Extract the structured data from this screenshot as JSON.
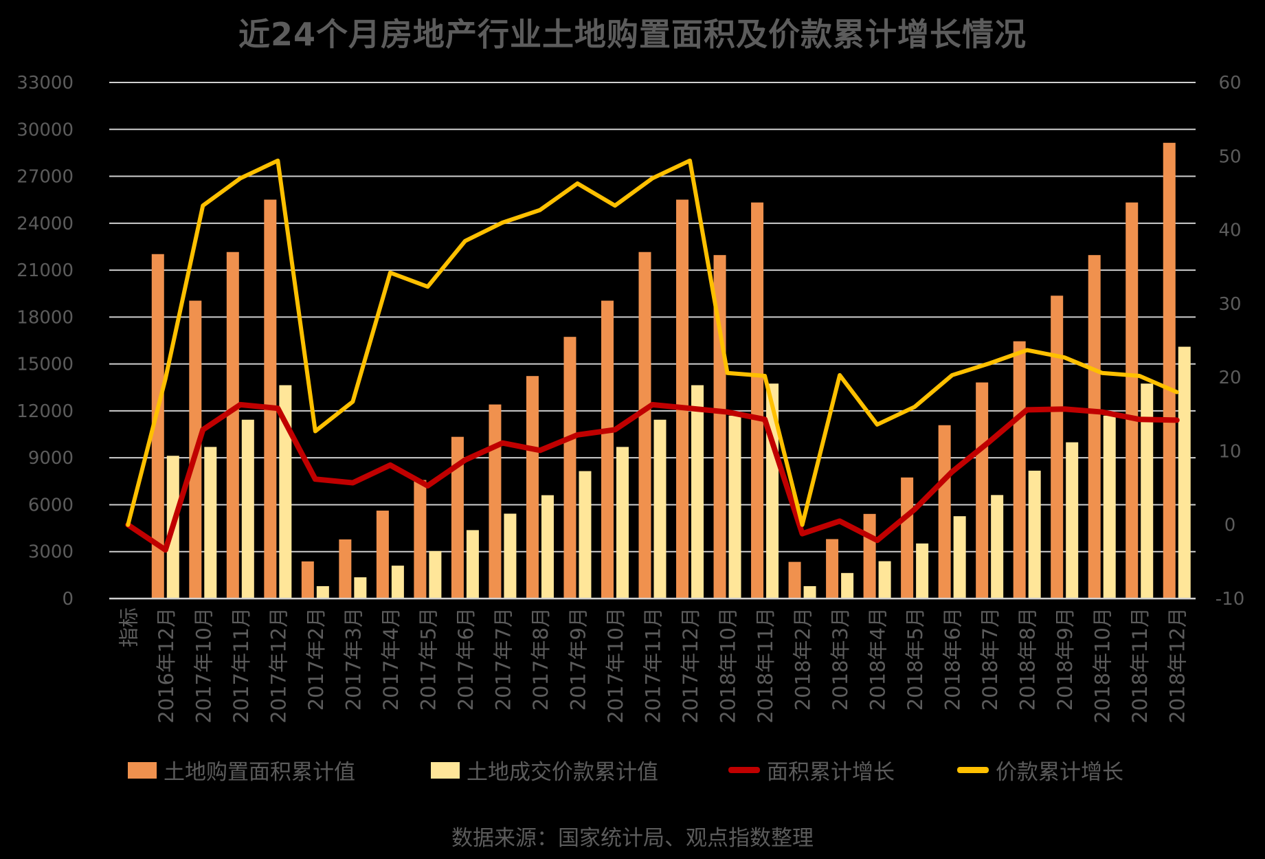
{
  "title": "近24个月房地产行业土地购置面积及价款累计增长情况",
  "source_note": "数据来源：国家统计局、观点指数整理",
  "colors": {
    "background": "#000000",
    "text_gray": "#5c5c5c",
    "gridline": "#d0d0d0",
    "area_bar": "#F0914E",
    "price_bar": "#FFE699",
    "area_growth_line": "#C00000",
    "price_growth_line": "#FFC000"
  },
  "legend": [
    {
      "label": "土地购置面积累计值",
      "type": "bar",
      "color": "#F0914E"
    },
    {
      "label": "土地成交价款累计值",
      "type": "bar",
      "color": "#FFE699"
    },
    {
      "label": "面积累计增长",
      "type": "line",
      "color": "#C00000"
    },
    {
      "label": "价款累计增长",
      "type": "line",
      "color": "#FFC000"
    }
  ],
  "chart_data": {
    "type": "combo-bar-line",
    "title": "近24个月房地产行业土地购置面积及价款累计增长情况",
    "grid": true,
    "legend_position": "bottom",
    "categories": [
      "指标",
      "2016年12月",
      "2017年10月",
      "2017年11月",
      "2017年12月",
      "2017年2月",
      "2017年3月",
      "2017年4月",
      "2017年5月",
      "2017年6月",
      "2017年7月",
      "2017年8月",
      "2017年9月",
      "2017年10月",
      "2017年11月",
      "2017年12月",
      "2018年10月",
      "2018年11月",
      "2018年2月",
      "2018年3月",
      "2018年4月",
      "2018年5月",
      "2018年6月",
      "2018年7月",
      "2018年8月",
      "2018年9月",
      "2018年10月",
      "2018年11月",
      "2018年12月"
    ],
    "left_axis": {
      "min": 0,
      "max": 33000,
      "step": 3000,
      "ticks": [
        0,
        3000,
        6000,
        9000,
        12000,
        15000,
        18000,
        21000,
        24000,
        27000,
        30000,
        33000
      ]
    },
    "right_axis": {
      "min": -10,
      "max": 60,
      "step": 10,
      "ticks": [
        -10,
        0,
        10,
        20,
        30,
        40,
        50,
        60
      ]
    },
    "series": [
      {
        "name": "土地购置面积累计值",
        "type": "bar",
        "axis": "left",
        "color": "#F0914E",
        "values": [
          0,
          22025,
          19048,
          22158,
          25508,
          2374,
          3782,
          5623,
          7580,
          10341,
          12410,
          14229,
          16733,
          19048,
          22158,
          25508,
          21963,
          25326,
          2345,
          3802,
          5412,
          7742,
          11085,
          13818,
          16451,
          19366,
          21963,
          25326,
          29142
        ]
      },
      {
        "name": "土地成交价款累计值",
        "type": "bar",
        "axis": "left",
        "color": "#FFE699",
        "values": [
          0,
          9129,
          9695,
          11436,
          13643,
          794,
          1359,
          2104,
          3036,
          4376,
          5428,
          6609,
          8149,
          9695,
          11436,
          13643,
          11695,
          13746,
          794,
          1634,
          2389,
          3522,
          5265,
          6619,
          8177,
          9992,
          11695,
          13746,
          16102
        ]
      },
      {
        "name": "面积累计增长",
        "type": "line",
        "axis": "right",
        "color": "#C00000",
        "values": [
          0,
          -3.4,
          12.9,
          16.3,
          15.8,
          6.2,
          5.7,
          8.1,
          5.3,
          8.8,
          11.1,
          10.1,
          12.2,
          12.9,
          16.3,
          15.8,
          15.3,
          14.3,
          -1.2,
          0.5,
          -2.1,
          2.1,
          7.2,
          11.3,
          15.6,
          15.7,
          15.3,
          14.3,
          14.2
        ]
      },
      {
        "name": "价款累计增长",
        "type": "line",
        "axis": "right",
        "color": "#FFC000",
        "values": [
          0,
          19.8,
          43.3,
          47.0,
          49.4,
          12.7,
          16.7,
          34.2,
          32.3,
          38.5,
          41.0,
          42.7,
          46.3,
          43.3,
          47.0,
          49.4,
          20.6,
          20.2,
          0.0,
          20.3,
          13.6,
          16.0,
          20.3,
          21.9,
          23.7,
          22.7,
          20.6,
          20.2,
          18.0
        ]
      }
    ]
  }
}
